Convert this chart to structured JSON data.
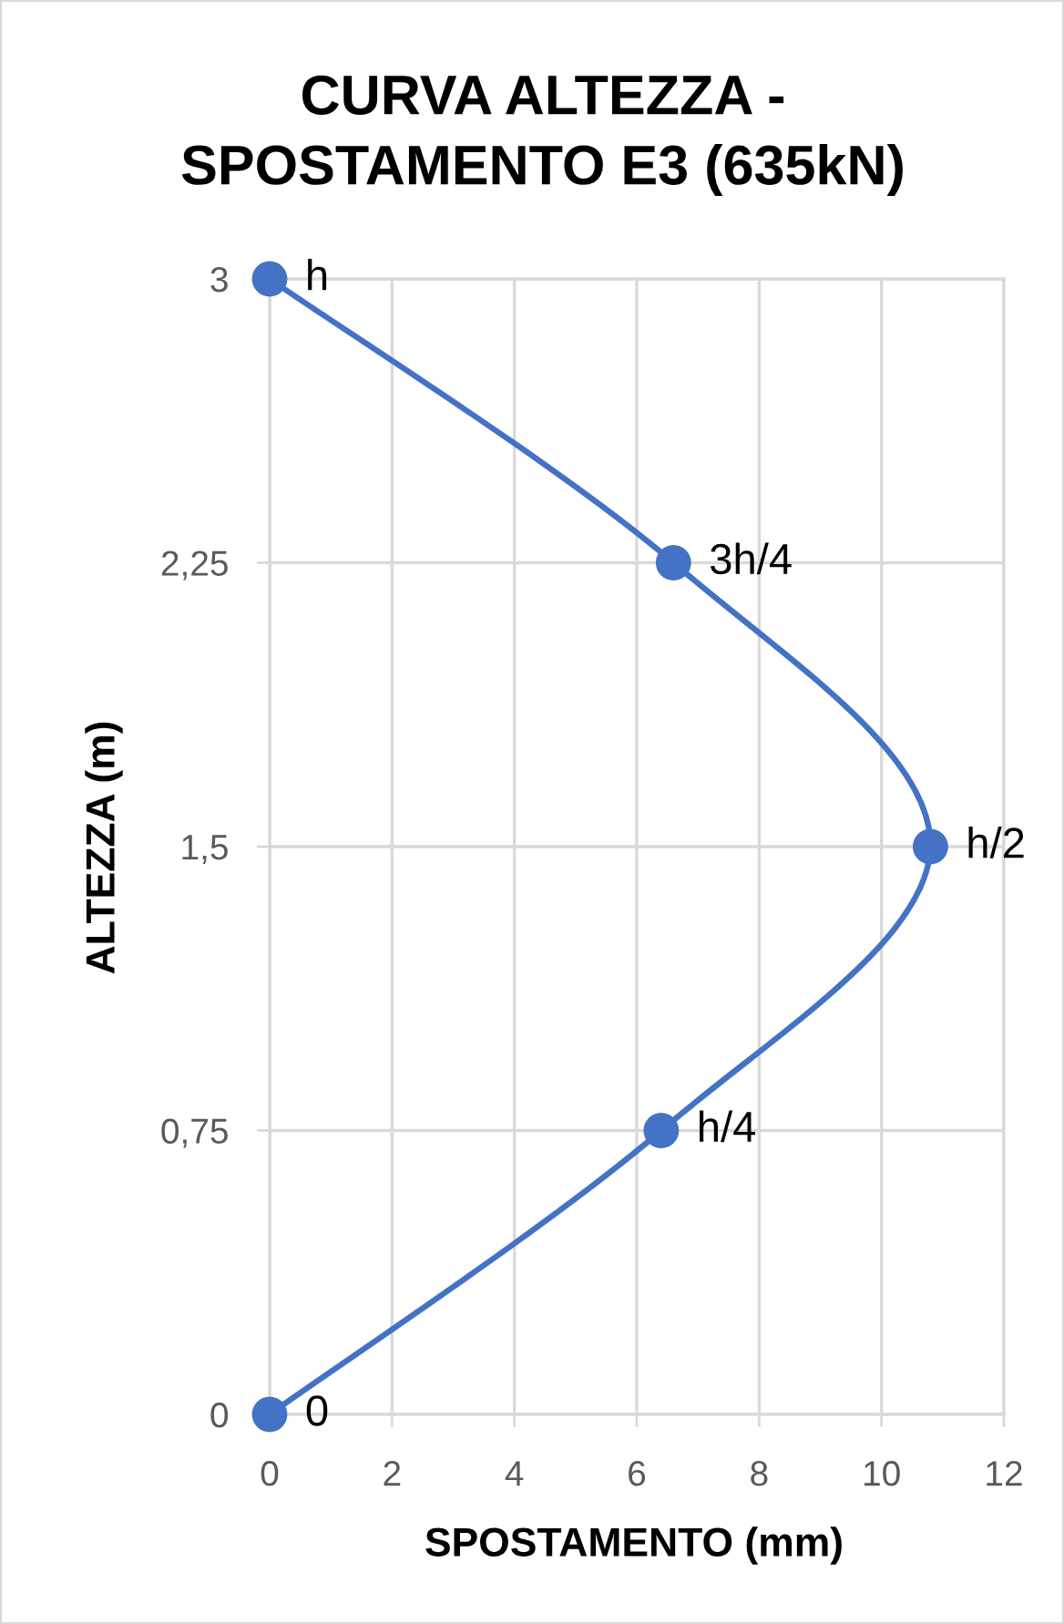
{
  "chart_data": {
    "type": "line",
    "title": "CURVA ALTEZZA -\nSPOSTAMENTO E3 (635kN)",
    "xlabel": "SPOSTAMENTO (mm)",
    "ylabel": "ALTEZZA (m)",
    "series": [
      {
        "color": "#4472c4",
        "x": [
          0,
          6.4,
          10.8,
          6.6,
          0
        ],
        "values": [
          0,
          0.75,
          1.5,
          2.25,
          3
        ]
      }
    ],
    "annotations": [
      {
        "text": "0",
        "x": 0,
        "y": 0
      },
      {
        "text": "h/4",
        "x": 6.4,
        "y": 0.75
      },
      {
        "text": "h/2",
        "x": 10.8,
        "y": 1.5
      },
      {
        "text": "3h/4",
        "x": 6.6,
        "y": 2.25
      },
      {
        "text": "h",
        "x": 0,
        "y": 3
      }
    ],
    "xlim": [
      0,
      12
    ],
    "xticks": [
      0,
      2,
      4,
      6,
      8,
      10,
      12
    ],
    "ylim": [
      0,
      3
    ],
    "yticks": [
      0,
      {
        "value": 0.75,
        "label": "0,75"
      },
      {
        "value": 1.5,
        "label": "1,5"
      },
      {
        "value": 2.25,
        "label": "2,25"
      },
      3
    ],
    "grid": true,
    "marker": "circle",
    "line_style": "solid"
  }
}
